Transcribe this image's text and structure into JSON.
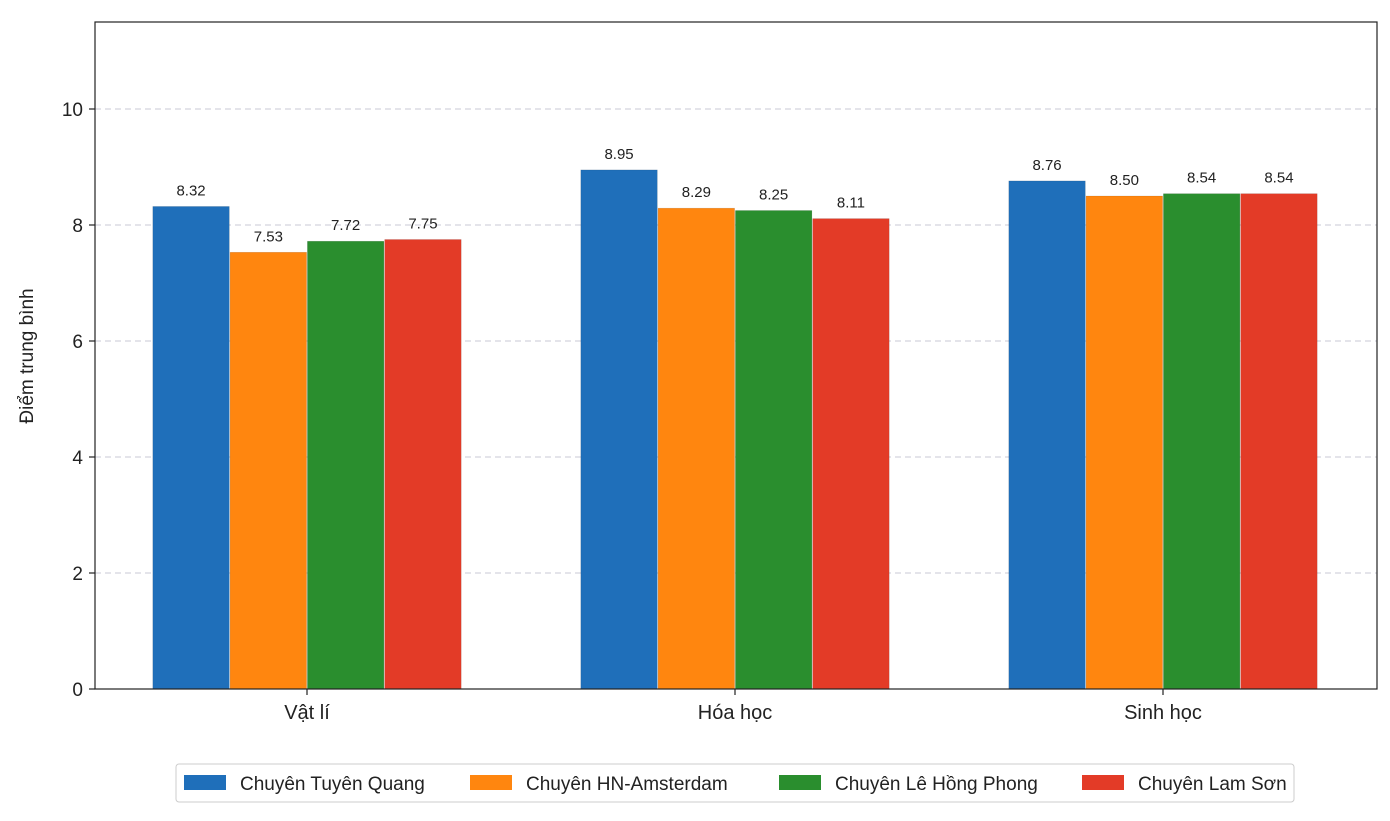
{
  "chart_data": {
    "type": "bar",
    "title": "",
    "xlabel": "",
    "ylabel": "Điểm trung bình",
    "categories": [
      "Vật lí",
      "Hóa học",
      "Sinh học"
    ],
    "series": [
      {
        "name": "Chuyên Tuyên Quang",
        "color": "#1f6fba",
        "values": [
          8.32,
          8.95,
          8.76
        ],
        "labels": [
          "8.32",
          "8.95",
          "8.76"
        ]
      },
      {
        "name": "Chuyên HN-Amsterdam",
        "color": "#ff860f",
        "values": [
          7.53,
          8.29,
          8.5
        ],
        "labels": [
          "7.53",
          "8.29",
          "8.50"
        ]
      },
      {
        "name": "Chuyên Lê Hồng Phong",
        "color": "#2a8e2e",
        "values": [
          7.72,
          8.25,
          8.54
        ],
        "labels": [
          "7.72",
          "8.25",
          "8.54"
        ]
      },
      {
        "name": "Chuyên Lam Sơn",
        "color": "#e33b27",
        "values": [
          7.75,
          8.11,
          8.54
        ],
        "labels": [
          "7.75",
          "8.11",
          "8.54"
        ]
      }
    ],
    "ylim": [
      0,
      11.5
    ],
    "yticks": [
      0,
      2,
      4,
      6,
      8,
      10
    ],
    "ytick_labels": [
      "0",
      "2",
      "4",
      "6",
      "8",
      "10"
    ],
    "grid": true,
    "legend_position": "bottom-center"
  }
}
